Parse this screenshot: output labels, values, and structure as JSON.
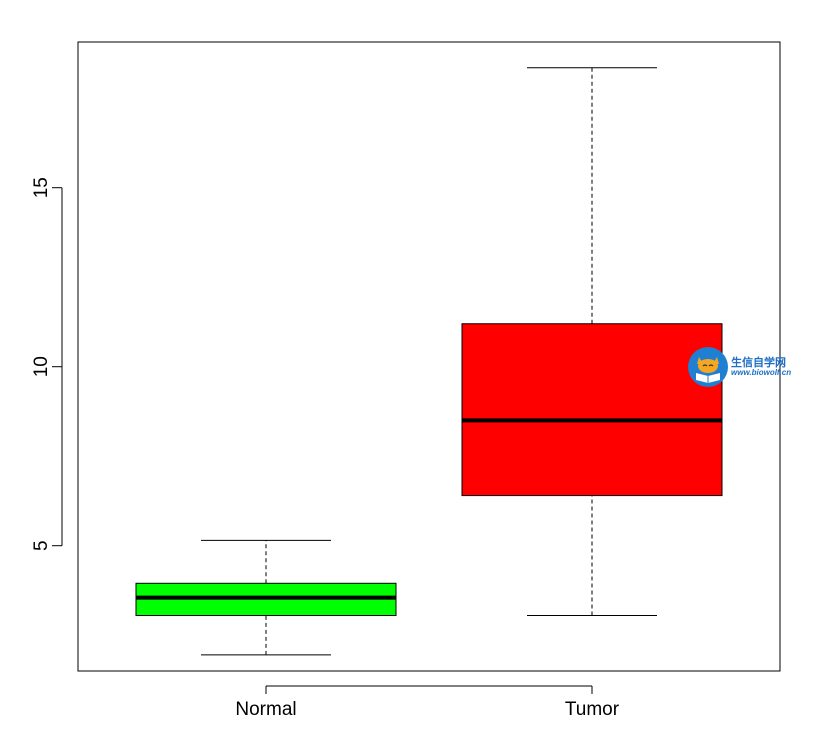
{
  "chart_data": {
    "type": "boxplot",
    "title": "",
    "xlabel": "",
    "ylabel": "",
    "ylim": [
      1.5,
      19.0
    ],
    "yticks": [
      5,
      10,
      15
    ],
    "categories": [
      "Normal",
      "Tumor"
    ],
    "boxes": [
      {
        "category": "Normal",
        "whisker_low": 1.95,
        "q1": 3.05,
        "median": 3.55,
        "q3": 3.95,
        "whisker_high": 5.15,
        "color": "#00ff00"
      },
      {
        "category": "Tumor",
        "whisker_low": 3.05,
        "q1": 6.4,
        "median": 8.5,
        "q3": 11.2,
        "whisker_high": 18.35,
        "color": "#ff0000"
      }
    ],
    "grid": false,
    "legend": "none"
  },
  "watermark": {
    "title": "生信自学网",
    "url": "www.biowolf.cn",
    "icon": "fox-book-logo"
  }
}
